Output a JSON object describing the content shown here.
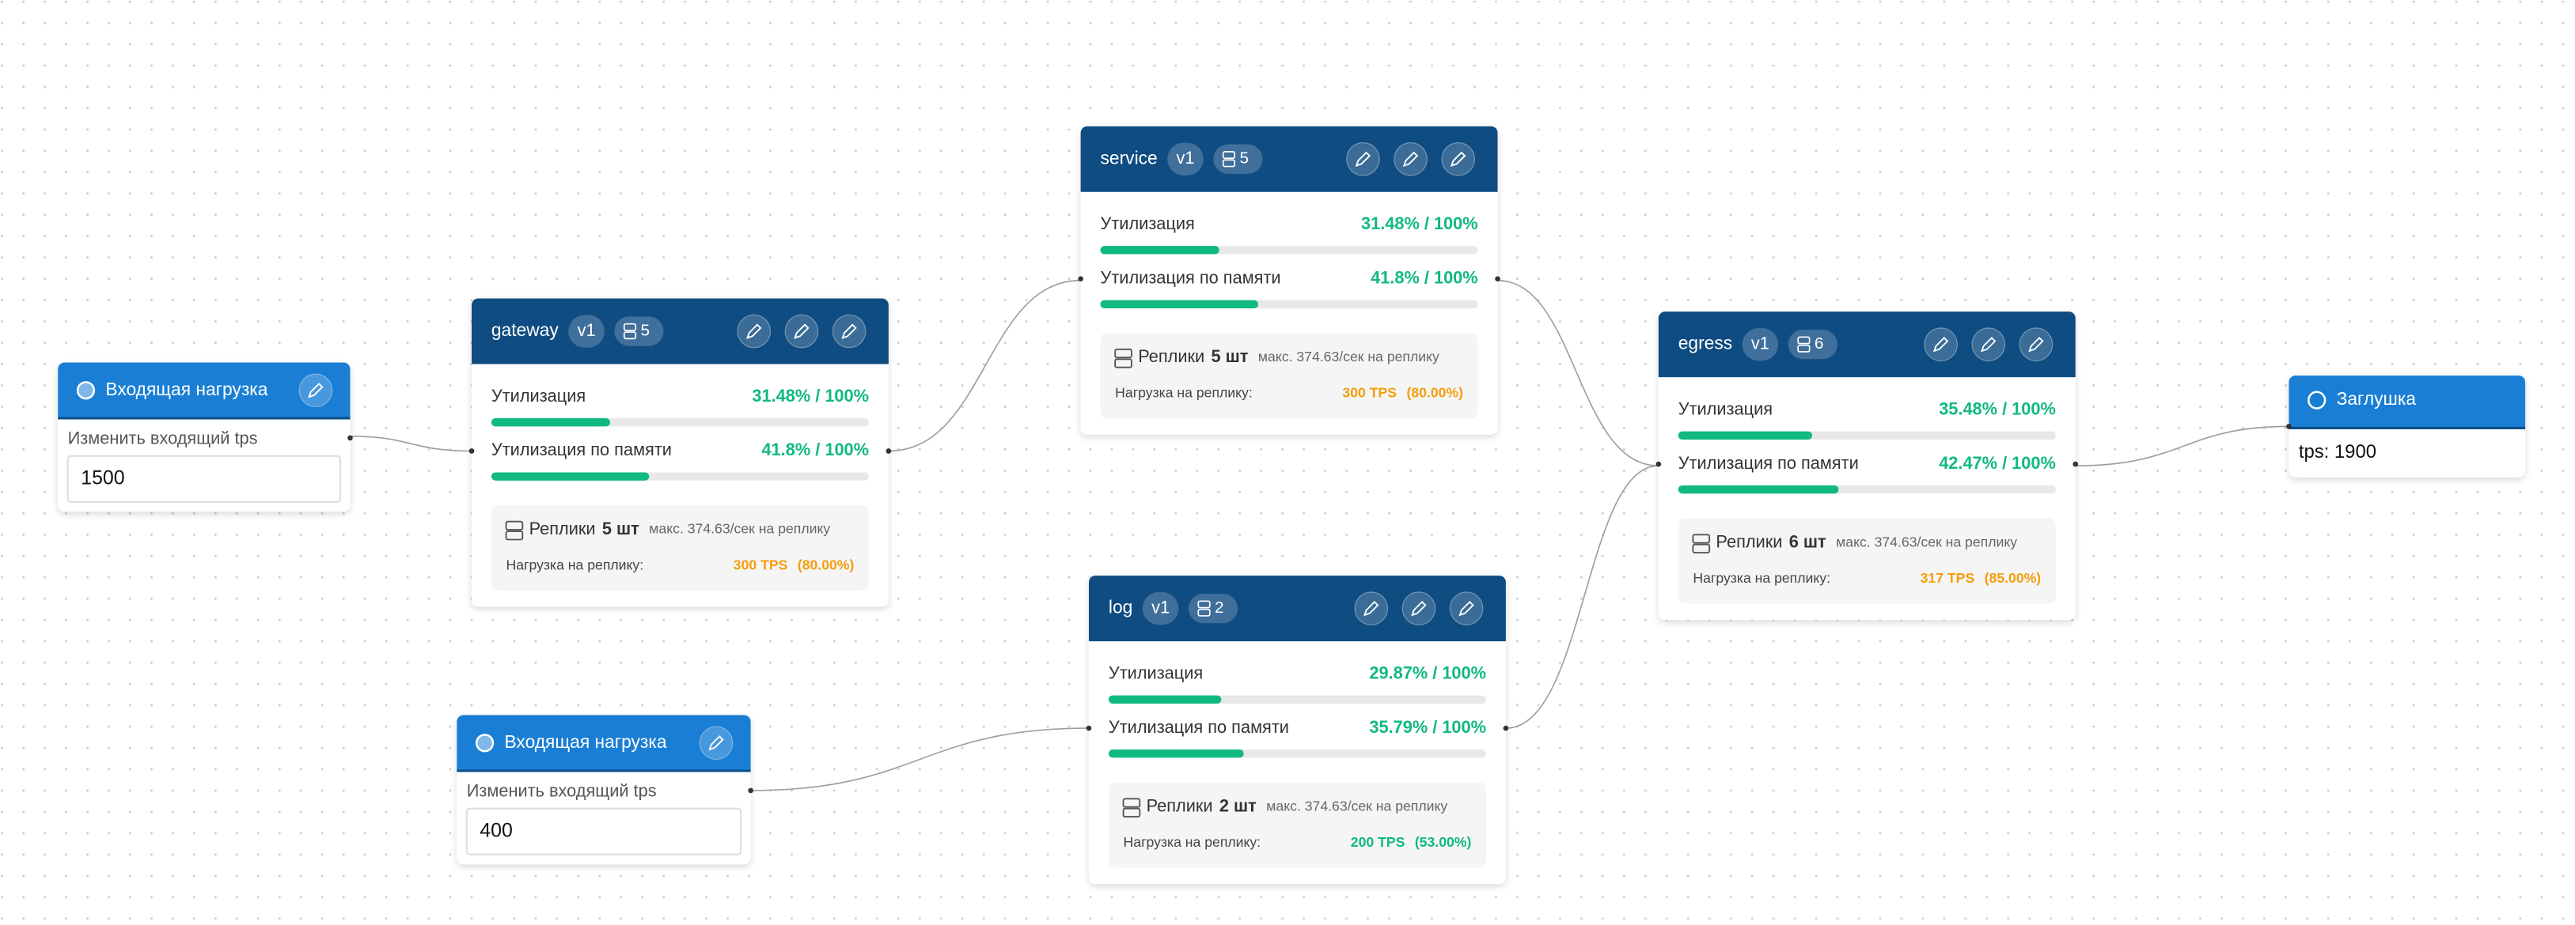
{
  "inputs": [
    {
      "title": "Входящая нагрузка",
      "field_label": "Изменить входящий tps",
      "value": 1500
    },
    {
      "title": "Входящая нагрузка",
      "field_label": "Изменить входящий tps",
      "value": 400
    }
  ],
  "services": [
    {
      "name": "gateway",
      "version": "v1",
      "replicas": 5,
      "cpu_label": "Утилизация",
      "cpu": {
        "value": 31.48,
        "label": "31.48% / 100%"
      },
      "mem_label": "Утилизация по памяти",
      "mem": {
        "value": 41.8,
        "label": "41.8% / 100%"
      },
      "replicas_label": "Реплики",
      "replicas_count": "5 шт",
      "max_rate": "макс. 374.63/сек на реплику",
      "load_label": "Нагрузка на реплику:",
      "load_tps": "300 TPS",
      "load_pct": "(80.00%)",
      "load_color": "#f59e0b"
    },
    {
      "name": "service",
      "version": "v1",
      "replicas": 5,
      "cpu_label": "Утилизация",
      "cpu": {
        "value": 31.48,
        "label": "31.48% / 100%"
      },
      "mem_label": "Утилизация по памяти",
      "mem": {
        "value": 41.8,
        "label": "41.8% / 100%"
      },
      "replicas_label": "Реплики",
      "replicas_count": "5 шт",
      "max_rate": "макс. 374.63/сек на реплику",
      "load_label": "Нагрузка на реплику:",
      "load_tps": "300 TPS",
      "load_pct": "(80.00%)",
      "load_color": "#f59e0b"
    },
    {
      "name": "log",
      "version": "v1",
      "replicas": 2,
      "cpu_label": "Утилизация",
      "cpu": {
        "value": 29.87,
        "label": "29.87% / 100%"
      },
      "mem_label": "Утилизация по памяти",
      "mem": {
        "value": 35.79,
        "label": "35.79% / 100%"
      },
      "replicas_label": "Реплики",
      "replicas_count": "2 шт",
      "max_rate": "макс. 374.63/сек на реплику",
      "load_label": "Нагрузка на реплику:",
      "load_tps": "200 TPS",
      "load_pct": "(53.00%)",
      "load_color": "#10b981"
    },
    {
      "name": "egress",
      "version": "v1",
      "replicas": 6,
      "cpu_label": "Утилизация",
      "cpu": {
        "value": 35.48,
        "label": "35.48% / 100%"
      },
      "mem_label": "Утилизация по памяти",
      "mem": {
        "value": 42.47,
        "label": "42.47% / 100%"
      },
      "replicas_label": "Реплики",
      "replicas_count": "6 шт",
      "max_rate": "макс. 374.63/сек на реплику",
      "load_label": "Нагрузка на реплику:",
      "load_tps": "317 TPS",
      "load_pct": "(85.00%)",
      "load_color": "#f59e0b"
    }
  ],
  "stub": {
    "title": "Заглушка",
    "tps": "tps: 1900"
  }
}
